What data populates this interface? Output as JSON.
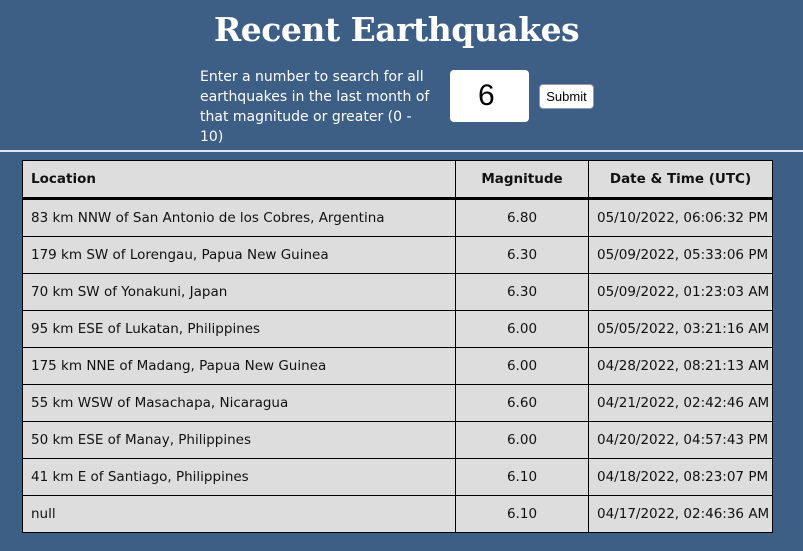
{
  "page": {
    "title": "Recent Earthquakes",
    "search_prompt": "Enter a number to search for all earthquakes in the last month of that magnitude or greater (0 - 10)",
    "magnitude_value": "6",
    "submit_label": "Submit"
  },
  "colors": {
    "background": "#3d5e85",
    "table_background": "#dddddd",
    "text_light": "#ffffff"
  },
  "table": {
    "headers": [
      "Location",
      "Magnitude",
      "Date & Time (UTC)"
    ],
    "rows": [
      {
        "location": "83 km NNW of San Antonio de los Cobres, Argentina",
        "magnitude": "6.80",
        "datetime": "05/10/2022, 06:06:32 PM"
      },
      {
        "location": "179 km SW of Lorengau, Papua New Guinea",
        "magnitude": "6.30",
        "datetime": "05/09/2022, 05:33:06 PM"
      },
      {
        "location": "70 km SW of Yonakuni, Japan",
        "magnitude": "6.30",
        "datetime": "05/09/2022, 01:23:03 AM"
      },
      {
        "location": "95 km ESE of Lukatan, Philippines",
        "magnitude": "6.00",
        "datetime": "05/05/2022, 03:21:16 AM"
      },
      {
        "location": "175 km NNE of Madang, Papua New Guinea",
        "magnitude": "6.00",
        "datetime": "04/28/2022, 08:21:13 AM"
      },
      {
        "location": "55 km WSW of Masachapa, Nicaragua",
        "magnitude": "6.60",
        "datetime": "04/21/2022, 02:42:46 AM"
      },
      {
        "location": "50 km ESE of Manay, Philippines",
        "magnitude": "6.00",
        "datetime": "04/20/2022, 04:57:43 PM"
      },
      {
        "location": "41 km E of Santiago, Philippines",
        "magnitude": "6.10",
        "datetime": "04/18/2022, 08:23:07 PM"
      },
      {
        "location": "null",
        "magnitude": "6.10",
        "datetime": "04/17/2022, 02:46:36 AM"
      }
    ]
  }
}
